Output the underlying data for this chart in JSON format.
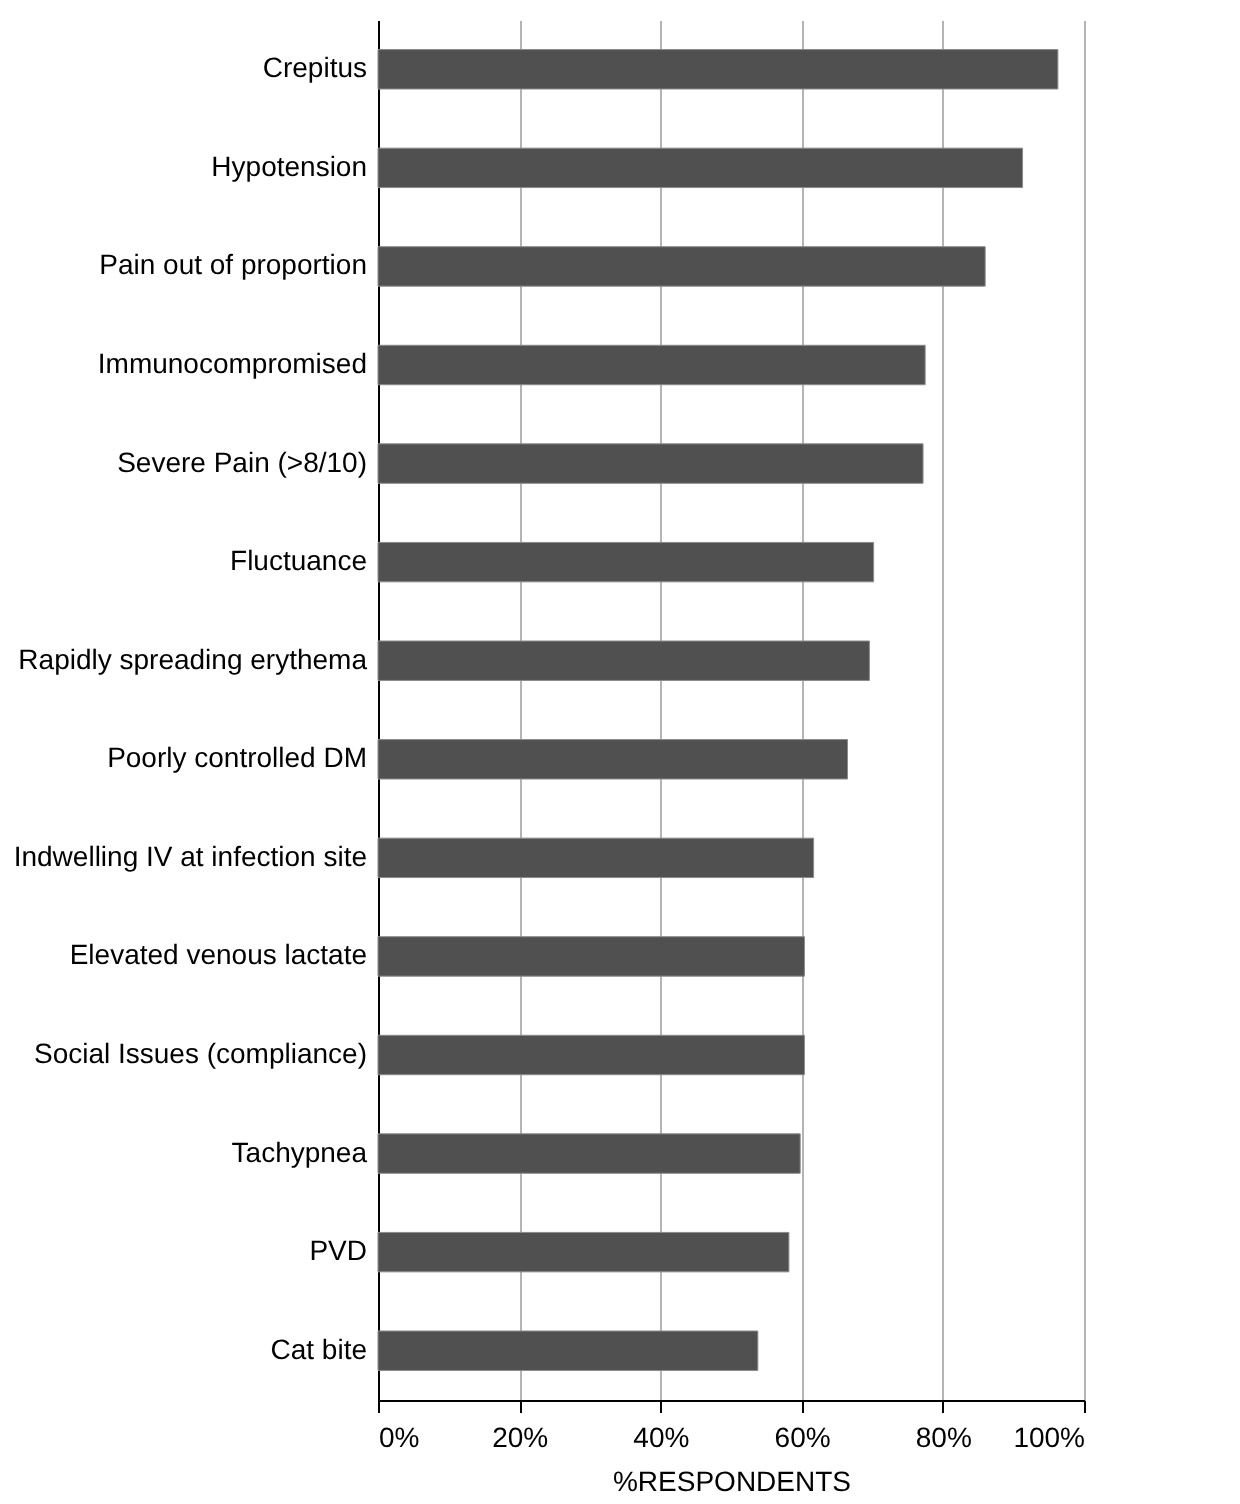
{
  "chart_data": {
    "type": "bar",
    "orientation": "horizontal",
    "xlabel": "%RESPONDENTS",
    "categories": [
      "Crepitus",
      "Hypotension",
      "Pain out of proportion",
      "Immunocompromised",
      "Severe Pain (>8/10)",
      "Fluctuance",
      "Rapidly spreading erythema",
      "Poorly controlled DM",
      "Indwelling IV at infection site",
      "Elevated venous lactate",
      "Social Issues (compliance)",
      "Tachypnea",
      "PVD",
      "Cat bite"
    ],
    "values": [
      96.3,
      91.3,
      86,
      77.5,
      77.2,
      70.2,
      69.6,
      66.5,
      61.7,
      60.4,
      60.4,
      59.8,
      58.2,
      53.8
    ],
    "color": "#505050",
    "xlim": [
      0,
      100
    ],
    "xticks": [
      {
        "value": 0,
        "label": "0%"
      },
      {
        "value": 20,
        "label": "20%"
      },
      {
        "value": 40,
        "label": "40%"
      },
      {
        "value": 60,
        "label": "60%"
      },
      {
        "value": 80,
        "label": "80%"
      },
      {
        "value": 100,
        "label": "100%"
      }
    ],
    "grid": "x"
  }
}
